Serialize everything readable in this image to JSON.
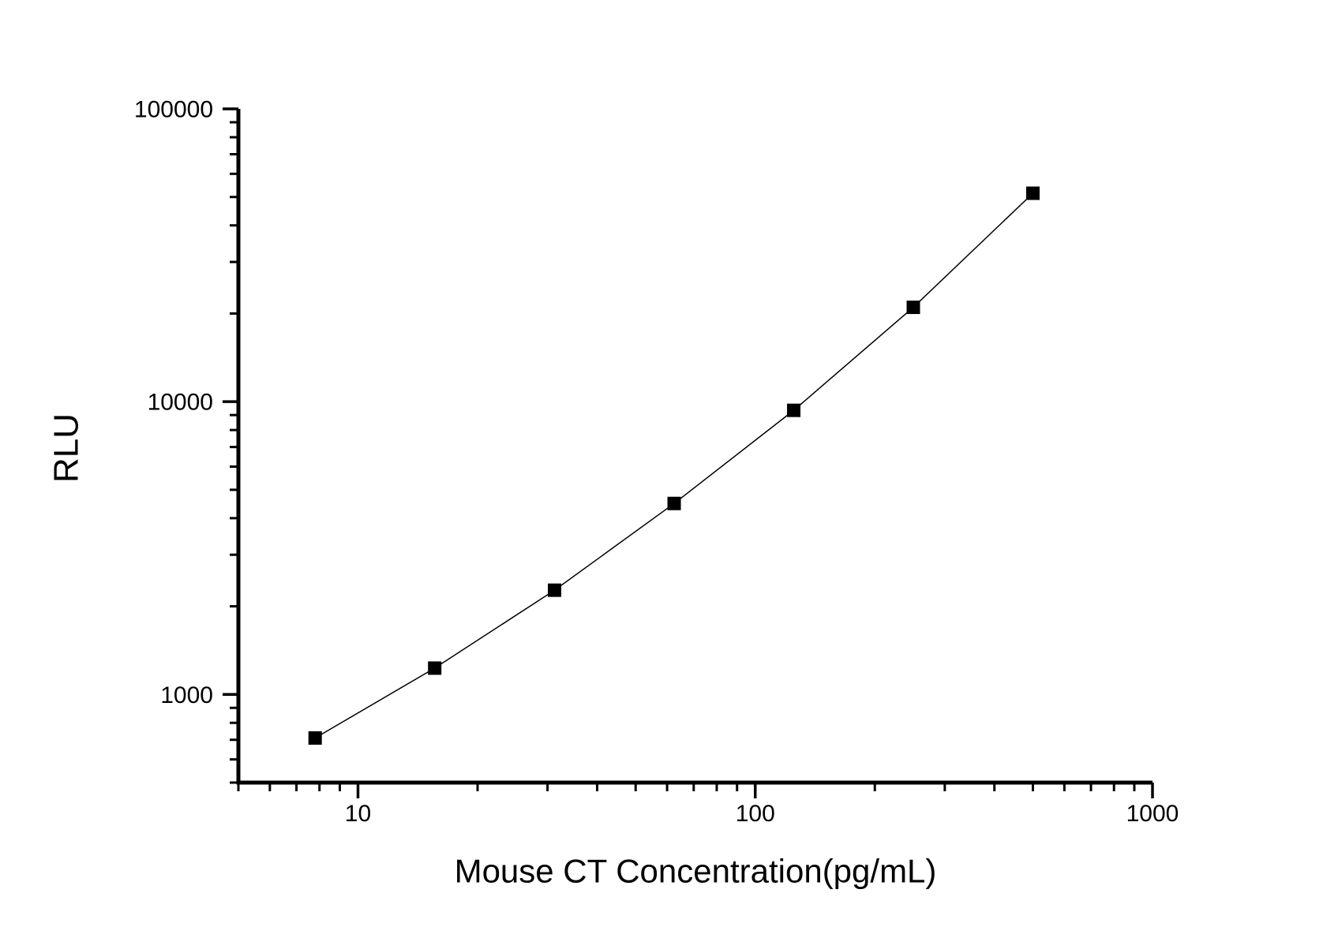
{
  "figure": {
    "background": "#ffffff",
    "text_color": "#000000",
    "axis_color": "#000000"
  },
  "chart_data": {
    "type": "line",
    "title": "",
    "xlabel": "Mouse CT Concentration(pg/mL)",
    "ylabel": "RLU",
    "xscale": "log",
    "yscale": "log",
    "xlim": [
      5,
      1000
    ],
    "ylim": [
      500,
      100000
    ],
    "x_major_ticks": [
      10,
      100,
      1000
    ],
    "x_tick_labels": [
      "10",
      "100",
      "1000"
    ],
    "y_major_ticks": [
      1000,
      10000,
      100000
    ],
    "y_tick_labels": [
      "1000",
      "10000",
      "100000"
    ],
    "minor_ticks": true,
    "grid": false,
    "legend": null,
    "series": [
      {
        "x": [
          7.8,
          15.6,
          31.25,
          62.5,
          125,
          250,
          500
        ],
        "y": [
          710,
          1230,
          2270,
          4490,
          9340,
          21000,
          51500
        ],
        "marker": "filled-square",
        "marker_color": "#000000",
        "line_color": "#000000"
      }
    ]
  }
}
